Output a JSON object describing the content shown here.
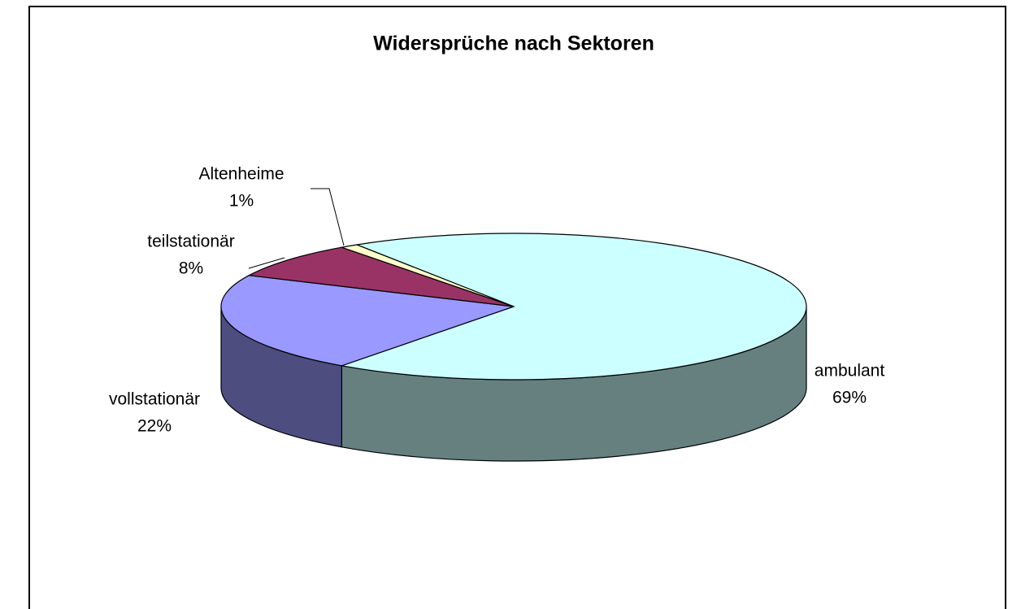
{
  "chart_data": {
    "type": "pie",
    "title": "Widersprüche nach Sektoren",
    "categories": [
      "ambulant",
      "vollstationär",
      "teilstationär",
      "Altenheime"
    ],
    "values": [
      69,
      22,
      8,
      1
    ],
    "value_labels": [
      "69%",
      "22%",
      "8%",
      "1%"
    ],
    "colors": [
      "#ccffff",
      "#9999ff",
      "#993366",
      "#ffffcc"
    ]
  }
}
